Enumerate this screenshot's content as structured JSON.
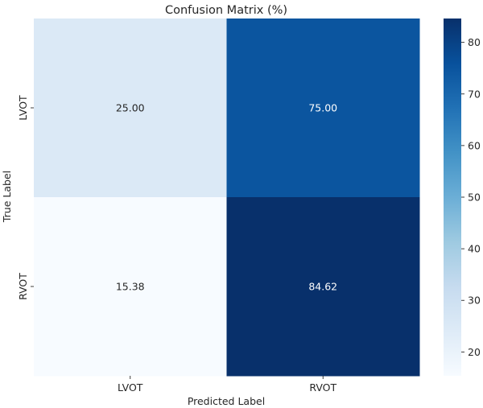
{
  "chart_data": {
    "type": "heatmap",
    "title": "Confusion Matrix (%)",
    "xlabel": "Predicted Label",
    "ylabel": "True Label",
    "x_categories": [
      "LVOT",
      "RVOT"
    ],
    "y_categories": [
      "LVOT",
      "RVOT"
    ],
    "values": [
      [
        25.0,
        75.0
      ],
      [
        15.38,
        84.62
      ]
    ],
    "value_labels": [
      [
        "25.00",
        "75.00"
      ],
      [
        "15.38",
        "84.62"
      ]
    ],
    "colormap": "Blues",
    "colorbar": {
      "range": [
        15.38,
        84.62
      ],
      "ticks": [
        20,
        30,
        40,
        50,
        60,
        70,
        80
      ],
      "tick_labels": [
        "20",
        "30",
        "40",
        "50",
        "60",
        "70",
        "80"
      ]
    },
    "grid": false
  }
}
